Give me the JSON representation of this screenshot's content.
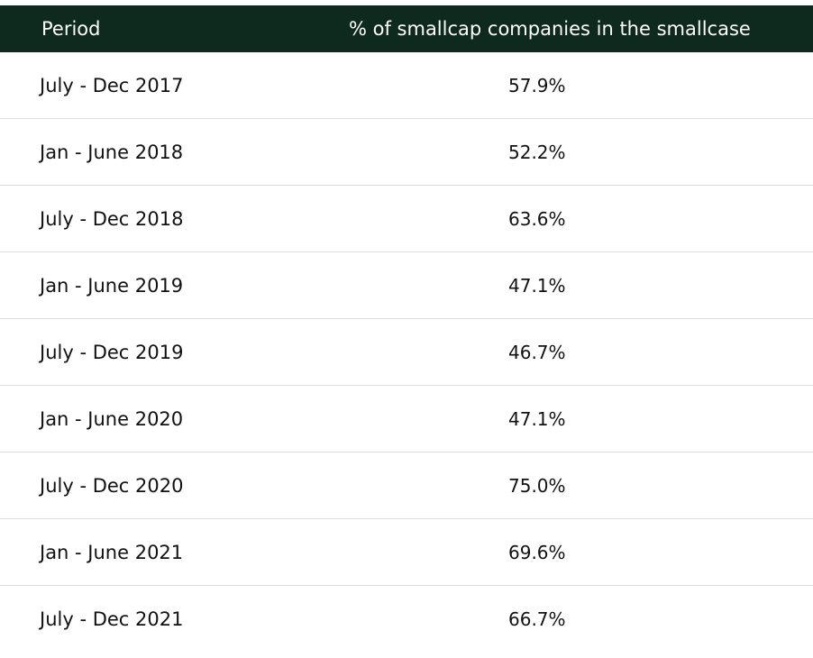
{
  "chart_data": {
    "type": "table",
    "columns": [
      "Period",
      "% of smallcap companies in the smallcase"
    ],
    "rows": [
      [
        "July - Dec 2017",
        "57.9%"
      ],
      [
        "Jan - June 2018",
        "52.2%"
      ],
      [
        "July - Dec 2018",
        "63.6%"
      ],
      [
        "Jan - June 2019",
        "47.1%"
      ],
      [
        "July - Dec 2019",
        "46.7%"
      ],
      [
        "Jan - June 2020",
        "47.1%"
      ],
      [
        "July - Dec 2020",
        "75.0%"
      ],
      [
        "Jan - June 2021",
        "69.6%"
      ],
      [
        "July - Dec 2021",
        "66.7%"
      ]
    ]
  },
  "colors": {
    "header_bg": "#0e2a1f",
    "header_text": "#ffffff",
    "row_divider": "#dedede",
    "text": "#111111"
  }
}
